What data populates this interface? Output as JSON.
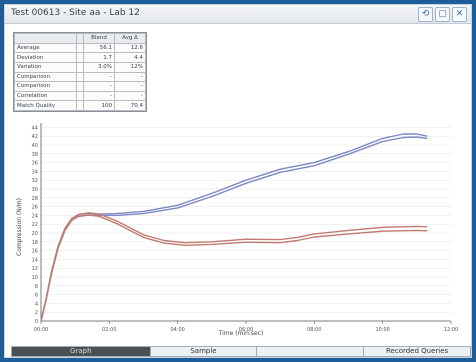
{
  "window": {
    "title": "Test 00613 - Site aa - Lab 12",
    "buttons": [
      "⟲",
      "▢",
      "✕"
    ]
  },
  "stats": {
    "headers": [
      "",
      "",
      "Blend",
      "Avg Δ"
    ],
    "rows": [
      [
        "Average",
        "",
        "56.1",
        "12.6"
      ],
      [
        "Deviation",
        "",
        "1.7",
        "4.4"
      ],
      [
        "Variation",
        "",
        "3.0%",
        "12%"
      ],
      [
        "Comparison",
        "",
        "-",
        "-"
      ],
      [
        "Comparison",
        "",
        "-",
        "-"
      ],
      [
        "Correlation",
        "",
        "-",
        "-"
      ],
      [
        "Match Quality",
        "",
        "100",
        "70.4"
      ]
    ]
  },
  "chart_data": {
    "type": "line",
    "title": "",
    "xlabel": "Time (min:sec)",
    "ylabel": "Compression (N/m)",
    "xlim": [
      0,
      12
    ],
    "ylim": [
      0,
      45
    ],
    "x_ticks": [
      "00:00",
      "02:00",
      "04:00",
      "06:00",
      "08:00",
      "10:00",
      "12:00"
    ],
    "y_ticks": [
      "0",
      "2",
      "4",
      "6",
      "8",
      "10",
      "12",
      "14",
      "16",
      "18",
      "20",
      "22",
      "24",
      "26",
      "28",
      "30",
      "32",
      "34",
      "36",
      "38",
      "40",
      "42",
      "44"
    ],
    "colors": {
      "blue": "#7c88c2",
      "red": "#c07b6f",
      "axis": "#555555",
      "grid": "#e2e2e2"
    },
    "series": [
      {
        "name": "",
        "color": "#7c88c2",
        "x": [
          0,
          0.15,
          0.3,
          0.5,
          0.7,
          0.9,
          1.1,
          1.4,
          1.7,
          2.2,
          3,
          4,
          5,
          6,
          7,
          8,
          9,
          10,
          10.6,
          11,
          11.3
        ],
        "y": [
          0,
          5,
          11,
          17,
          21,
          23.3,
          24.2,
          24.5,
          24.3,
          24.4,
          24.9,
          26.3,
          29,
          32,
          34.5,
          36,
          38.5,
          41.5,
          42.5,
          42.5,
          42
        ]
      },
      {
        "name": "",
        "color": "#7c88c2",
        "x": [
          0,
          0.15,
          0.3,
          0.5,
          0.7,
          0.9,
          1.1,
          1.4,
          1.7,
          2.2,
          3,
          4,
          5,
          6,
          7,
          8,
          9,
          10,
          10.6,
          11,
          11.3
        ],
        "y": [
          0,
          4.8,
          10.6,
          16.6,
          20.6,
          22.9,
          23.8,
          24.1,
          24,
          24,
          24.4,
          25.7,
          28.3,
          31.3,
          33.8,
          35.3,
          37.9,
          40.8,
          41.7,
          41.8,
          41.5
        ]
      },
      {
        "name": "",
        "color": "#c07b6f",
        "x": [
          0,
          0.15,
          0.3,
          0.5,
          0.7,
          0.9,
          1.1,
          1.4,
          1.7,
          2.2,
          2.6,
          3,
          3.6,
          4.2,
          5,
          6,
          7,
          7.5,
          8,
          9,
          10,
          11,
          11.3
        ],
        "y": [
          0,
          5,
          11,
          17,
          21,
          23.3,
          24.2,
          24.6,
          24.3,
          22.8,
          21.2,
          19.6,
          18.3,
          17.8,
          18,
          18.6,
          18.5,
          19,
          19.8,
          20.6,
          21.3,
          21.5,
          21.4
        ]
      },
      {
        "name": "",
        "color": "#c07b6f",
        "x": [
          0,
          0.15,
          0.3,
          0.5,
          0.7,
          0.9,
          1.1,
          1.4,
          1.7,
          2.2,
          2.6,
          3,
          3.6,
          4.2,
          5,
          6,
          7,
          7.5,
          8,
          9,
          10,
          11,
          11.3
        ],
        "y": [
          0,
          4.8,
          10.6,
          16.6,
          20.6,
          22.9,
          23.8,
          24.1,
          23.8,
          22.2,
          20.6,
          19,
          17.7,
          17.2,
          17.4,
          17.9,
          17.8,
          18.3,
          19.1,
          19.8,
          20.4,
          20.6,
          20.5
        ]
      }
    ]
  },
  "tabs": [
    {
      "label": "Graph",
      "active": true
    },
    {
      "label": "Sample",
      "active": false
    },
    {
      "label": "",
      "active": false
    },
    {
      "label": "Recorded Queries",
      "active": false
    }
  ]
}
